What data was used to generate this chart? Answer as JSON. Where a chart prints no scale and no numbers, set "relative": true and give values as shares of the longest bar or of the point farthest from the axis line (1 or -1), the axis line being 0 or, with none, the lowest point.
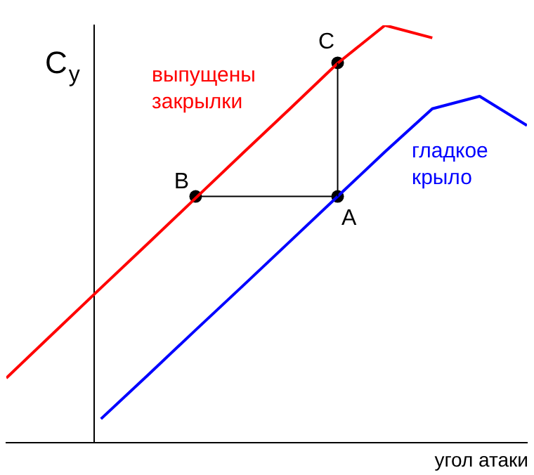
{
  "chart_data": {
    "type": "line",
    "relative": true,
    "xlabel": "угол атаки",
    "ylabel": "C$_{y}$",
    "categories": [
      null,
      null,
      null,
      null,
      null,
      null,
      null,
      null,
      null,
      null,
      null,
      null
    ],
    "series": [
      {
        "name": "выпущены закрылки",
        "color": "#ff0000",
        "values": [
          0.155,
          0.263,
          0.371,
          0.478,
          0.586,
          0.694,
          0.801,
          0.909,
          1,
          0.97,
          null,
          null
        ]
      },
      {
        "name": "гладкое крыло",
        "color": "#0000ff",
        "values": [
          null,
          null,
          0.057,
          0.163,
          0.27,
          0.376,
          0.483,
          0.59,
          0.697,
          0.8,
          0.83,
          0.76
        ]
      },
      {
        "color": "#000000",
        "values": [
          null,
          null,
          null,
          null,
          0.59,
          null,
          null,
          0.59,
          null,
          null,
          null,
          null
        ],
        "marker": "circle"
      },
      {
        "color": "#000000",
        "values": [
          null,
          null,
          null,
          null,
          null,
          null,
          null,
          0.91,
          null,
          null,
          null,
          null
        ],
        "marker": "circle"
      }
    ],
    "annotations": [
      "B",
      "A",
      "C"
    ]
  }
}
